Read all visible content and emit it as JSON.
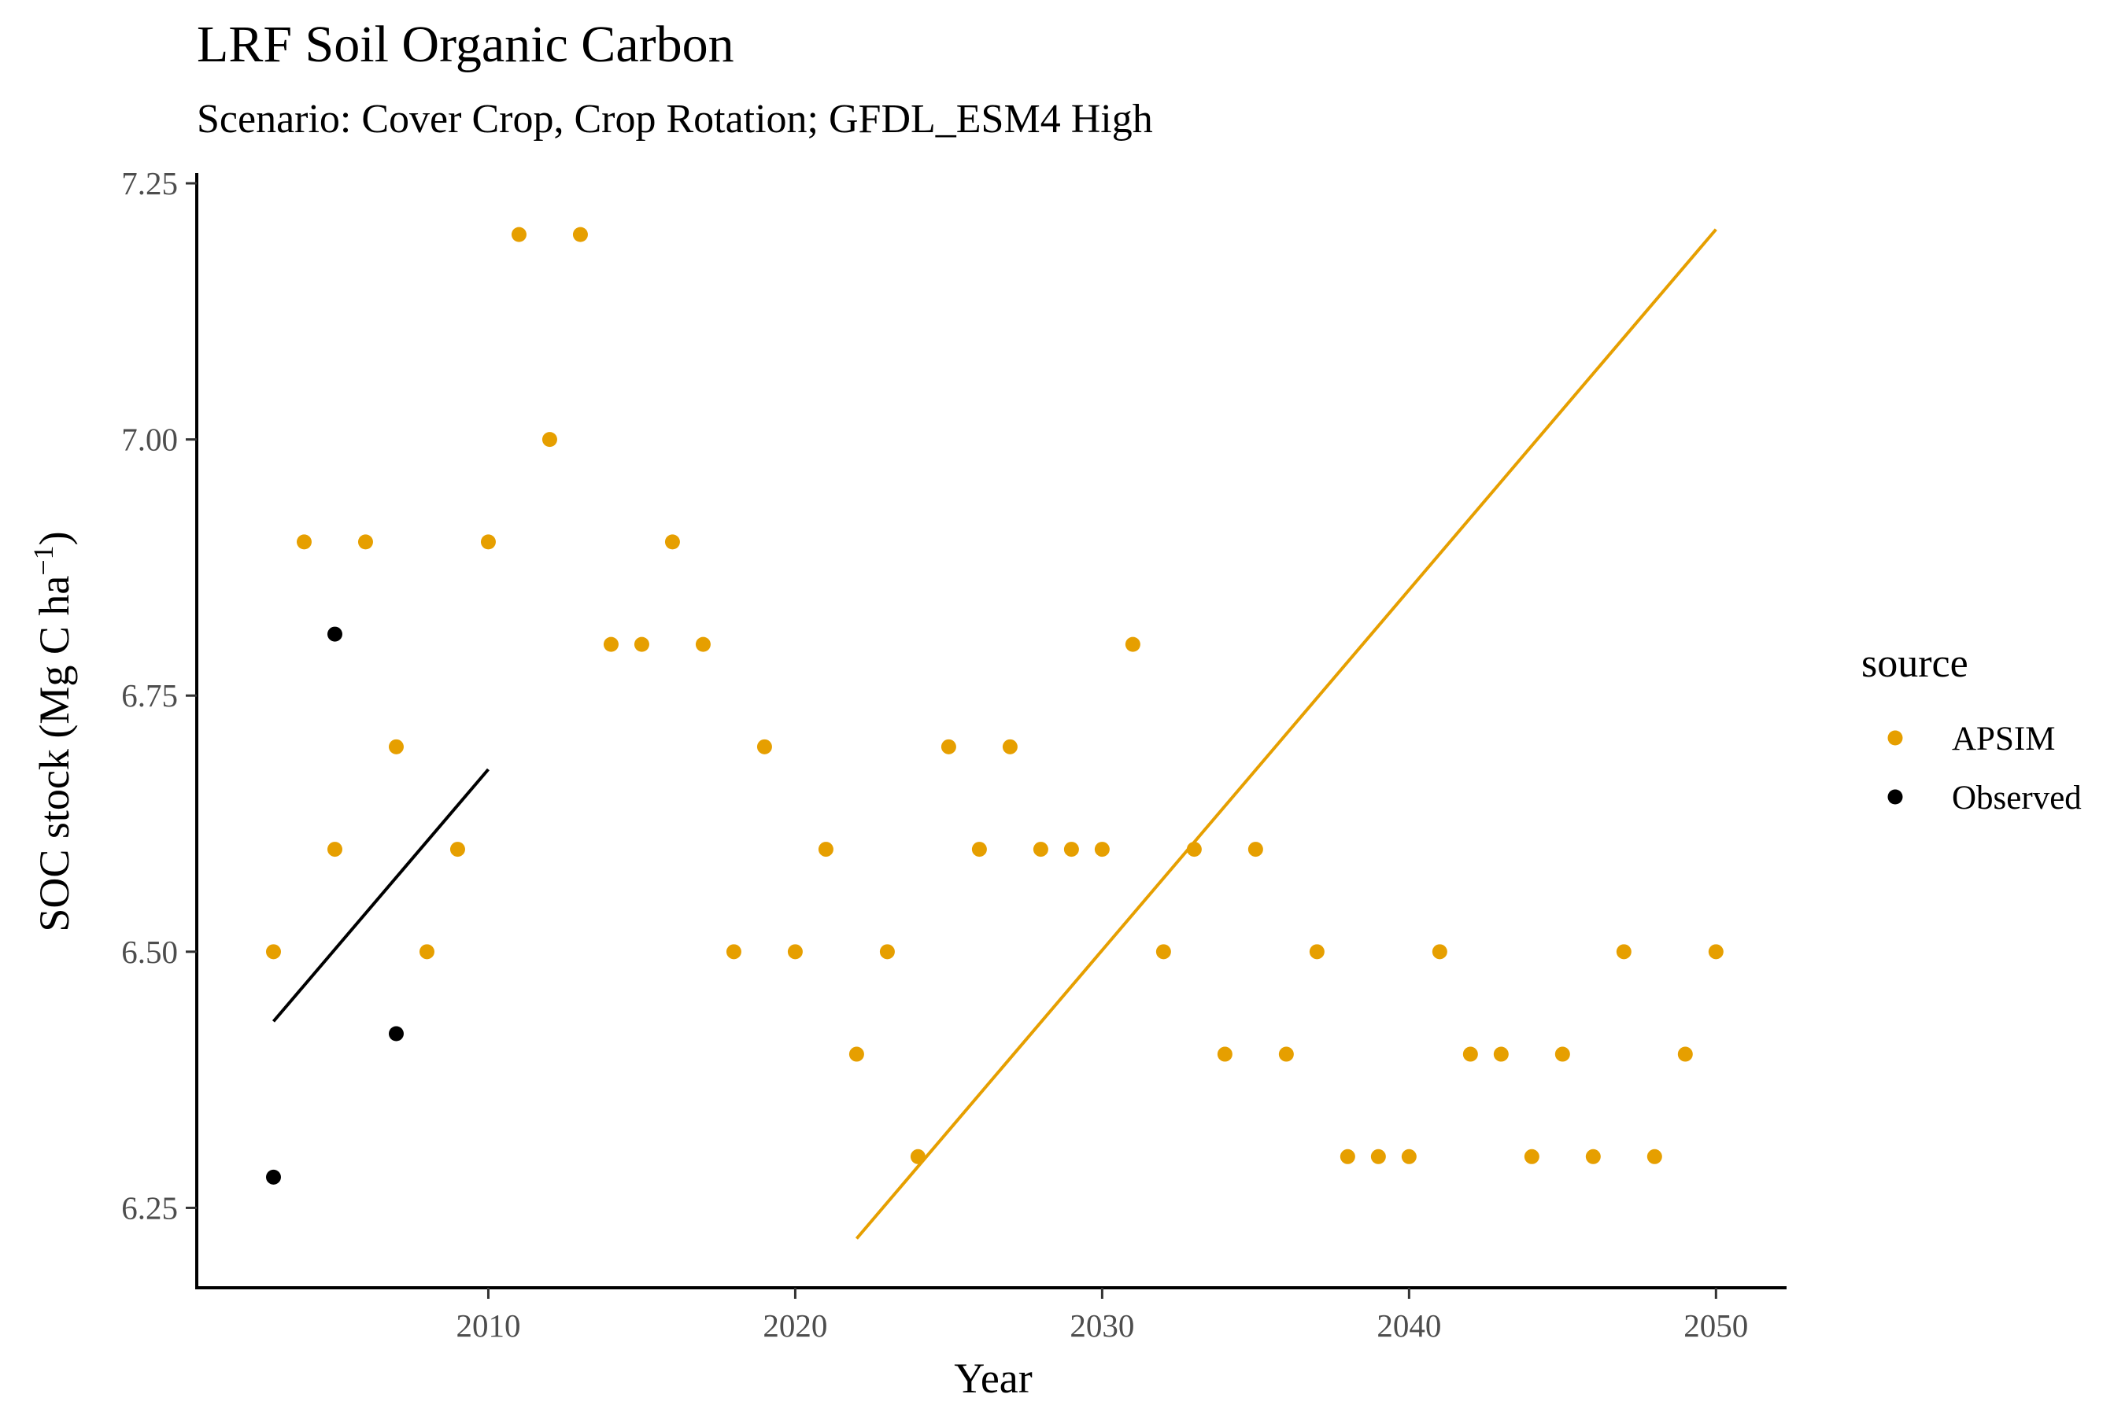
{
  "chart_data": {
    "type": "scatter",
    "title": "LRF Soil Organic Carbon",
    "subtitle": "Scenario: Cover Crop, Crop Rotation; GFDL_ESM4 High",
    "xlabel": "Year",
    "ylabel": "SOC stock (Mg C ha",
    "ylabel_superscript": "−1",
    "ylabel_close": ")",
    "xlim": [
      2000.5,
      2052.3
    ],
    "ylim": [
      6.172,
      7.26
    ],
    "x_ticks": [
      2010,
      2020,
      2030,
      2040,
      2050
    ],
    "x_tick_labels": [
      "2010",
      "2020",
      "2030",
      "2040",
      "2050"
    ],
    "y_ticks": [
      6.25,
      6.5,
      6.75,
      7.0,
      7.25
    ],
    "y_tick_labels": [
      "6.25",
      "6.50",
      "6.75",
      "7.00",
      "7.25"
    ],
    "grid": false,
    "legend": {
      "title": "source",
      "placement": "right",
      "entries": [
        {
          "name": "APSIM",
          "color": "#E69F00"
        },
        {
          "name": "Observed",
          "color": "#000000"
        }
      ]
    },
    "series": [
      {
        "name": "APSIM",
        "color": "#E69F00",
        "x": [
          2003,
          2004,
          2005,
          2006,
          2007,
          2008,
          2009,
          2010,
          2011,
          2012,
          2013,
          2014,
          2015,
          2016,
          2017,
          2018,
          2019,
          2020,
          2021,
          2022,
          2023,
          2024,
          2025,
          2026,
          2027,
          2028,
          2029,
          2030,
          2031,
          2032,
          2033,
          2034,
          2035,
          2036,
          2037,
          2038,
          2039,
          2040,
          2041,
          2042,
          2043,
          2044,
          2045,
          2046,
          2047,
          2048,
          2049,
          2050
        ],
        "y": [
          6.5,
          6.9,
          6.6,
          6.9,
          6.7,
          6.5,
          6.6,
          6.9,
          7.2,
          7.0,
          7.2,
          6.8,
          6.8,
          6.9,
          6.8,
          6.5,
          6.7,
          6.5,
          6.6,
          6.4,
          6.5,
          6.3,
          6.7,
          6.6,
          6.7,
          6.6,
          6.6,
          6.6,
          6.8,
          6.5,
          6.6,
          6.4,
          6.6,
          6.4,
          6.5,
          6.3,
          6.3,
          6.3,
          6.5,
          6.4,
          6.4,
          6.3,
          6.4,
          6.3,
          6.5,
          6.3,
          6.4,
          6.5
        ],
        "trend_line": {
          "x": [
            2022,
            2050
          ],
          "y": [
            6.22,
            7.205
          ]
        }
      },
      {
        "name": "Observed",
        "color": "#000000",
        "x": [
          2003,
          2005,
          2007
        ],
        "y": [
          6.28,
          6.81,
          6.42
        ],
        "trend_line": {
          "x": [
            2003,
            2010
          ],
          "y": [
            6.432,
            6.678
          ]
        }
      }
    ]
  }
}
